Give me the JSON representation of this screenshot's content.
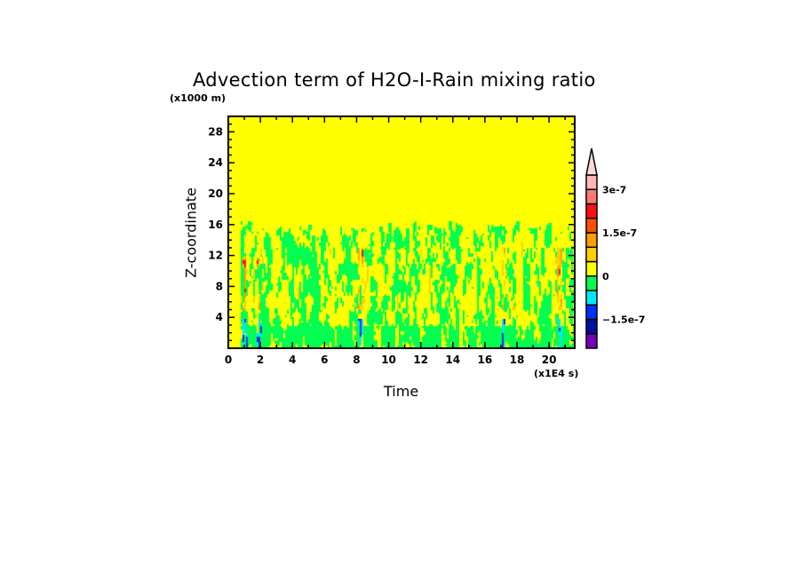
{
  "chart_data": {
    "type": "heatmap",
    "title": "Advection term of H2O-I-Rain mixing ratio",
    "xlabel": "Time",
    "xunit": "(x1E4 s)",
    "ylabel": "Z-coordinate",
    "yunit": "(x1000 m)",
    "xlim": [
      0,
      21.6
    ],
    "ylim": [
      0,
      30
    ],
    "xticks": [
      "0",
      "2",
      "4",
      "6",
      "8",
      "10",
      "12",
      "14",
      "16",
      "18",
      "20"
    ],
    "yticks": [
      "4",
      "8",
      "12",
      "16",
      "20",
      "24",
      "28"
    ],
    "colorbar": {
      "levels": [
        -2.5e-07,
        -2e-07,
        -1.5e-07,
        -1e-07,
        -5e-08,
        0,
        5e-08,
        1e-07,
        1.5e-07,
        2e-07,
        2.5e-07,
        3e-07,
        3.5e-07
      ],
      "colors": [
        "#7a00b4",
        "#0010a0",
        "#0030ff",
        "#00e8ff",
        "#00ff50",
        "#ffff00",
        "#ffd000",
        "#ffa000",
        "#ff5000",
        "#ff1010",
        "#ff7878",
        "#ffb8b8",
        "#ffd8d8"
      ],
      "extend": "max",
      "labels": [
        {
          "value": -1.5e-07,
          "text": "−1.5e-7"
        },
        {
          "value": 0,
          "text": "0"
        },
        {
          "value": 1.5e-07,
          "text": "1.5e-7"
        },
        {
          "value": 3e-07,
          "text": "3e-7"
        }
      ]
    },
    "grid": false,
    "field_description_values": {
      "active_layer_top_z": 16,
      "data_start_x": 0.7
    }
  }
}
